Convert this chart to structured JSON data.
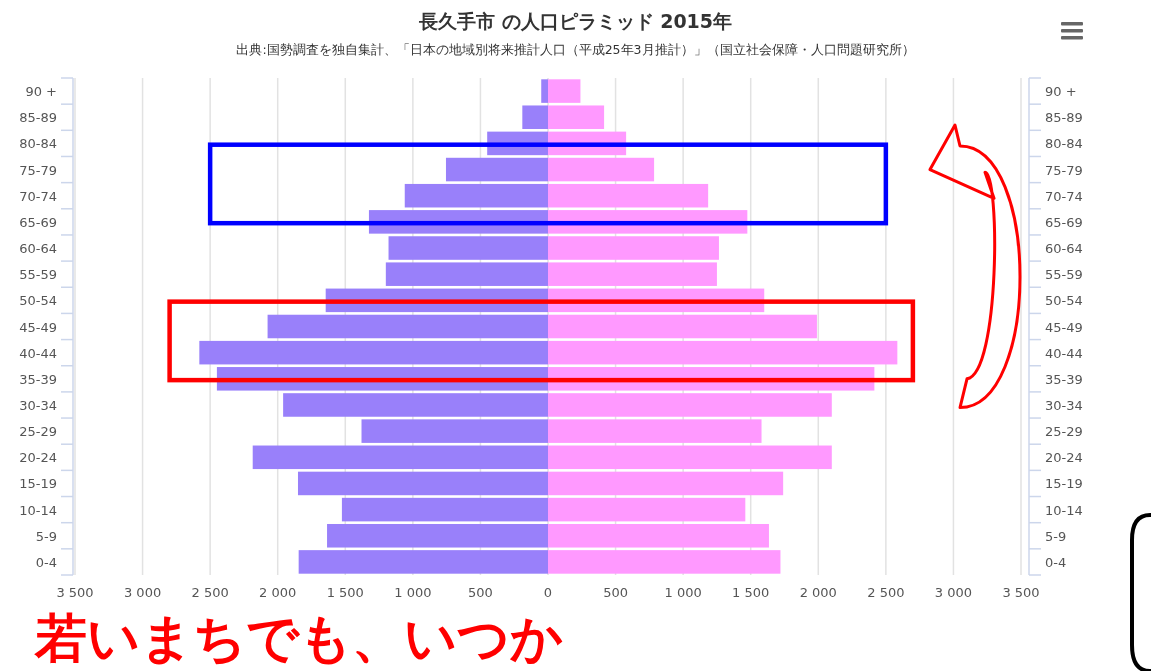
{
  "chart_data": {
    "type": "bar",
    "orientation": "horizontal",
    "title": "長久手市 の人口ピラミッド 2015年",
    "subtitle": "出典:国勢調査を独自集計、「日本の地域別将来推計人口（平成25年3月推計）」（国立社会保障・人口問題研究所）",
    "categories": [
      "90 +",
      "85-89",
      "80-84",
      "75-79",
      "70-74",
      "65-69",
      "60-64",
      "55-59",
      "50-54",
      "45-49",
      "40-44",
      "35-39",
      "30-34",
      "25-29",
      "20-24",
      "15-19",
      "10-14",
      "5-9",
      "0-4"
    ],
    "series": [
      {
        "color": "#9980fa",
        "values": [
          -50,
          -190,
          -450,
          -755,
          -1060,
          -1325,
          -1180,
          -1200,
          -1645,
          -2075,
          -2580,
          -2450,
          -1960,
          -1380,
          -2185,
          -1850,
          -1525,
          -1635,
          -1845
        ]
      },
      {
        "color": "#ff99ff",
        "values": [
          240,
          415,
          578,
          785,
          1185,
          1475,
          1265,
          1250,
          1600,
          1990,
          2585,
          2415,
          2100,
          1580,
          2100,
          1740,
          1460,
          1635,
          1720
        ]
      }
    ],
    "xlim": [
      -3500,
      3500
    ],
    "xticks": [
      {
        "value": -3500,
        "label": "3 500"
      },
      {
        "value": -3000,
        "label": "3 000"
      },
      {
        "value": -2500,
        "label": "2 500"
      },
      {
        "value": -2000,
        "label": "2 000"
      },
      {
        "value": -1500,
        "label": "1 500"
      },
      {
        "value": -1000,
        "label": "1 000"
      },
      {
        "value": -500,
        "label": "500"
      },
      0,
      500,
      {
        "value": 1000,
        "label": "1 000"
      },
      {
        "value": 1500,
        "label": "1 500"
      },
      {
        "value": 2000,
        "label": "2 000"
      },
      {
        "value": 2500,
        "label": "2 500"
      },
      {
        "value": 3000,
        "label": "3 000"
      },
      {
        "value": 3500,
        "label": "3 500"
      }
    ],
    "grid": "x",
    "stacked": true,
    "legend": false,
    "annotations": [
      "若いまちでも、いつか"
    ]
  }
}
